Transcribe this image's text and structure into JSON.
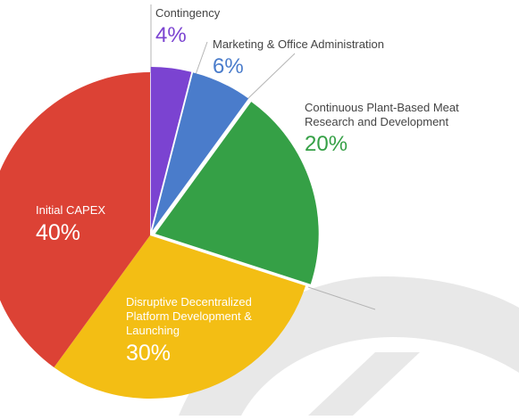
{
  "chart_data": {
    "type": "pie",
    "slices": [
      {
        "label": "Contingency",
        "value": 4,
        "display": "4%",
        "color": "#7B43D1"
      },
      {
        "label": "Marketing & Office Administration",
        "value": 6,
        "display": "6%",
        "color": "#4A7CCB"
      },
      {
        "label": "Continuous Plant-Based Meat Research and Development",
        "value": 20,
        "display": "20%",
        "color": "#35A046"
      },
      {
        "label": "Disruptive Decentralized Platform Development & Launching",
        "value": 30,
        "display": "30%",
        "color": "#F3BE14"
      },
      {
        "label": "Initial CAPEX",
        "value": 40,
        "display": "40%",
        "color": "#DC4235"
      }
    ],
    "legend": "none",
    "label_text_color": "#444444",
    "background_watermark_color": "#E6E6E6"
  }
}
